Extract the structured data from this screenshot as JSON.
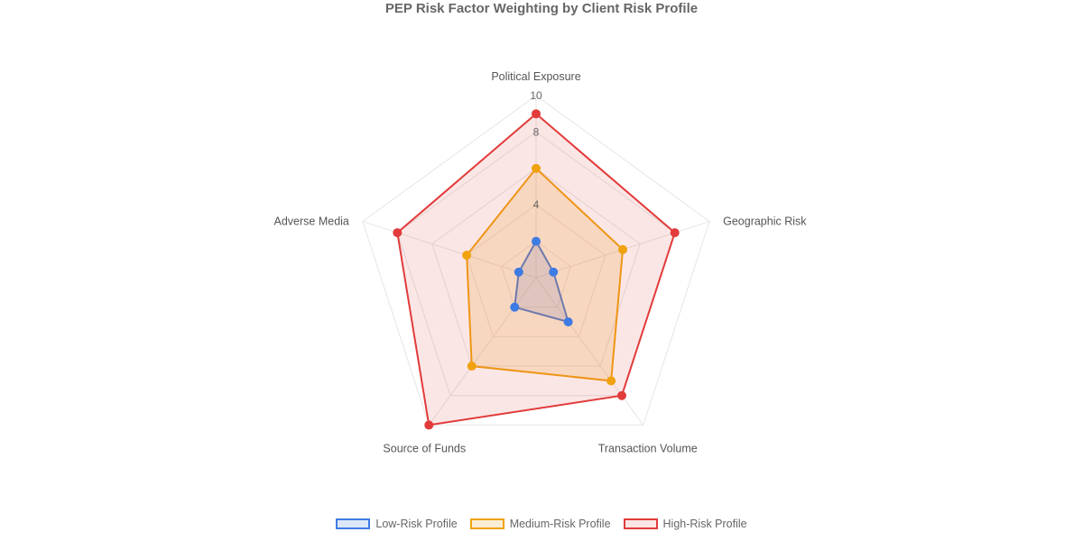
{
  "chart_data": {
    "type": "radar",
    "title": "PEP Risk Factor Weighting by Client Risk Profile",
    "axes": [
      "Political Exposure",
      "Geographic Risk",
      "Transaction Volume",
      "Source of Funds",
      "Adverse Media"
    ],
    "scale": {
      "min": 0,
      "max": 10,
      "tick_labels": [
        "4",
        "8",
        "10"
      ]
    },
    "grid": true,
    "legend_position": "bottom",
    "series": [
      {
        "name": "Low-Risk Profile",
        "values": [
          2,
          1,
          3,
          2,
          1
        ],
        "color": "#3e7be3",
        "fill": "rgba(62,123,227,0.18)"
      },
      {
        "name": "Medium-Risk Profile",
        "values": [
          6,
          5,
          7,
          6,
          4
        ],
        "color": "#f0a20f",
        "fill": "rgba(240,162,15,0.18)"
      },
      {
        "name": "High-Risk Profile",
        "values": [
          9,
          8,
          8,
          10,
          8
        ],
        "color": "#e23b3b",
        "fill": "rgba(226,59,59,0.13)"
      }
    ]
  }
}
